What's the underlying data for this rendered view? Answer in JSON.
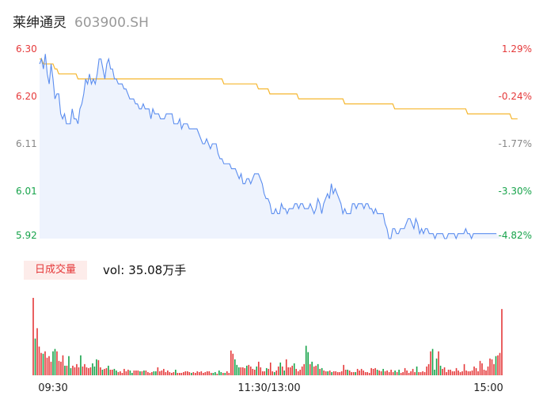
{
  "header": {
    "stock_name": "莱绅通灵",
    "stock_code": "603900.SH"
  },
  "volume_panel": {
    "tab_label": "日成交量",
    "vol_label": "vol:",
    "vol_value": "35.08万手"
  },
  "colors": {
    "price_line": "#5b8def",
    "avg_line": "#f5b62e",
    "up": "#e5393a",
    "down": "#16a34a",
    "neutral": "#888888",
    "area_fill": "#eef3fd"
  },
  "chart_data": [
    {
      "type": "line",
      "title": "",
      "y_left_ticks": [
        "6.30",
        "6.20",
        "6.11",
        "6.01",
        "5.92"
      ],
      "y_right_ticks": [
        "1.29%",
        "-0.24%",
        "-1.77%",
        "-3.30%",
        "-4.82%"
      ],
      "ylim": [
        5.92,
        6.3
      ],
      "x_count": 241,
      "series": [
        {
          "role": "price",
          "values": [
            6.27,
            6.28,
            6.26,
            6.29,
            6.25,
            6.23,
            6.27,
            6.24,
            6.2,
            6.21,
            6.21,
            6.17,
            6.16,
            6.17,
            6.15,
            6.15,
            6.15,
            6.18,
            6.16,
            6.16,
            6.15,
            6.18,
            6.19,
            6.21,
            6.24,
            6.23,
            6.25,
            6.23,
            6.24,
            6.23,
            6.25,
            6.28,
            6.28,
            6.26,
            6.24,
            6.27,
            6.28,
            6.26,
            6.26,
            6.24,
            6.24,
            6.23,
            6.23,
            6.23,
            6.22,
            6.22,
            6.21,
            6.2,
            6.2,
            6.2,
            6.19,
            6.19,
            6.18,
            6.18,
            6.19,
            6.18,
            6.18,
            6.18,
            6.16,
            6.18,
            6.17,
            6.17,
            6.17,
            6.16,
            6.16,
            6.16,
            6.17,
            6.17,
            6.17,
            6.17,
            6.15,
            6.15,
            6.15,
            6.16,
            6.14,
            6.15,
            6.15,
            6.15,
            6.14,
            6.14,
            6.14,
            6.14,
            6.14,
            6.13,
            6.12,
            6.11,
            6.11,
            6.12,
            6.11,
            6.1,
            6.11,
            6.11,
            6.11,
            6.09,
            6.08,
            6.08,
            6.07,
            6.07,
            6.07,
            6.07,
            6.06,
            6.06,
            6.06,
            6.05,
            6.04,
            6.05,
            6.03,
            6.03,
            6.04,
            6.04,
            6.03,
            6.04,
            6.05,
            6.05,
            6.05,
            6.04,
            6.03,
            6.01,
            6.0,
            6.0,
            5.99,
            5.97,
            5.97,
            5.98,
            5.97,
            5.97,
            5.99,
            5.98,
            5.98,
            5.97,
            5.98,
            5.98,
            5.98,
            5.99,
            5.99,
            5.98,
            5.99,
            5.99,
            5.98,
            5.98,
            5.98,
            5.99,
            5.98,
            5.97,
            5.98,
            6.0,
            5.99,
            5.97,
            5.99,
            6.0,
            6.01,
            6.0,
            6.03,
            6.01,
            6.02,
            6.01,
            6.0,
            5.99,
            5.97,
            5.98,
            5.97,
            5.97,
            5.97,
            5.99,
            5.99,
            5.98,
            5.99,
            5.99,
            5.99,
            5.98,
            5.99,
            5.99,
            5.98,
            5.98,
            5.97,
            5.98,
            5.97,
            5.97,
            5.97,
            5.97,
            5.95,
            5.94,
            5.92,
            5.92,
            5.94,
            5.94,
            5.93,
            5.93,
            5.94,
            5.94,
            5.94,
            5.95,
            5.96,
            5.96,
            5.95,
            5.94,
            5.96,
            5.95,
            5.93,
            5.94,
            5.93,
            5.94,
            5.94,
            5.93,
            5.93,
            5.93,
            5.92,
            5.93,
            5.93,
            5.93,
            5.93,
            5.92,
            5.92,
            5.93,
            5.93,
            5.93,
            5.93,
            5.92,
            5.93,
            5.93,
            5.93,
            5.93,
            5.94,
            5.93,
            5.93,
            5.92,
            5.93,
            5.93,
            5.93,
            5.93,
            5.93,
            5.93,
            5.93,
            5.93,
            5.93,
            5.93,
            5.93,
            5.93,
            5.93
          ]
        },
        {
          "role": "average",
          "values": [
            6.28,
            6.28,
            6.27,
            6.27,
            6.27,
            6.27,
            6.27,
            6.27,
            6.26,
            6.26,
            6.25,
            6.25,
            6.25,
            6.25,
            6.25,
            6.25,
            6.25,
            6.25,
            6.25,
            6.25,
            6.24,
            6.24,
            6.24,
            6.24,
            6.24,
            6.24,
            6.24,
            6.24,
            6.24,
            6.24,
            6.24,
            6.24,
            6.24,
            6.24,
            6.24,
            6.24,
            6.24,
            6.24,
            6.24,
            6.24,
            6.24,
            6.24,
            6.24,
            6.24,
            6.24,
            6.24,
            6.24,
            6.24,
            6.24,
            6.24,
            6.24,
            6.24,
            6.24,
            6.24,
            6.24,
            6.24,
            6.24,
            6.24,
            6.24,
            6.24,
            6.24,
            6.24,
            6.24,
            6.24,
            6.24,
            6.24,
            6.24,
            6.24,
            6.24,
            6.24,
            6.24,
            6.24,
            6.24,
            6.24,
            6.24,
            6.24,
            6.24,
            6.24,
            6.24,
            6.24,
            6.24,
            6.24,
            6.24,
            6.24,
            6.24,
            6.24,
            6.24,
            6.24,
            6.24,
            6.24,
            6.24,
            6.24,
            6.24,
            6.24,
            6.24,
            6.24,
            6.23,
            6.23,
            6.23,
            6.23,
            6.23,
            6.23,
            6.23,
            6.23,
            6.23,
            6.23,
            6.23,
            6.23,
            6.23,
            6.23,
            6.23,
            6.23,
            6.23,
            6.23,
            6.22,
            6.22,
            6.22,
            6.22,
            6.22,
            6.22,
            6.21,
            6.21,
            6.21,
            6.21,
            6.21,
            6.21,
            6.21,
            6.21,
            6.21,
            6.21,
            6.21,
            6.21,
            6.21,
            6.21,
            6.21,
            6.2,
            6.2,
            6.2,
            6.2,
            6.2,
            6.2,
            6.2,
            6.2,
            6.2,
            6.2,
            6.2,
            6.2,
            6.2,
            6.2,
            6.2,
            6.2,
            6.2,
            6.2,
            6.2,
            6.2,
            6.2,
            6.2,
            6.2,
            6.2,
            6.19,
            6.19,
            6.19,
            6.19,
            6.19,
            6.19,
            6.19,
            6.19,
            6.19,
            6.19,
            6.19,
            6.19,
            6.19,
            6.19,
            6.19,
            6.19,
            6.19,
            6.19,
            6.19,
            6.19,
            6.19,
            6.19,
            6.19,
            6.19,
            6.19,
            6.19,
            6.18,
            6.18,
            6.18,
            6.18,
            6.18,
            6.18,
            6.18,
            6.18,
            6.18,
            6.18,
            6.18,
            6.18,
            6.18,
            6.18,
            6.18,
            6.18,
            6.18,
            6.18,
            6.18,
            6.18,
            6.18,
            6.18,
            6.18,
            6.18,
            6.18,
            6.18,
            6.18,
            6.18,
            6.18,
            6.18,
            6.18,
            6.18,
            6.18,
            6.18,
            6.18,
            6.18,
            6.18,
            6.18,
            6.17,
            6.17,
            6.17,
            6.17,
            6.17,
            6.17,
            6.17,
            6.17,
            6.17,
            6.17,
            6.17,
            6.17,
            6.17,
            6.17,
            6.17,
            6.17,
            6.17,
            6.17,
            6.17,
            6.17,
            6.17,
            6.17,
            6.17,
            6.16,
            6.16,
            6.16,
            6.16
          ]
        }
      ]
    },
    {
      "type": "bar",
      "title": "",
      "x_tick_labels": [
        "09:30",
        "11:30/13:00",
        "15:00"
      ],
      "values": [
        97,
        46,
        59,
        36,
        28,
        27,
        30,
        22,
        24,
        17,
        30,
        33,
        30,
        18,
        17,
        25,
        12,
        12,
        24,
        9,
        12,
        10,
        14,
        10,
        25,
        11,
        14,
        10,
        9,
        10,
        15,
        11,
        20,
        19,
        10,
        7,
        8,
        9,
        12,
        7,
        7,
        8,
        6,
        4,
        5,
        3,
        8,
        5,
        7,
        6,
        3,
        6,
        6,
        6,
        5,
        5,
        6,
        6,
        4,
        3,
        4,
        5,
        5,
        10,
        5,
        6,
        8,
        4,
        6,
        4,
        3,
        4,
        7,
        3,
        3,
        3,
        4,
        5,
        5,
        4,
        3,
        4,
        3,
        5,
        4,
        5,
        3,
        4,
        5,
        5,
        3,
        3,
        4,
        2,
        6,
        4,
        3,
        3,
        5,
        3,
        31,
        27,
        20,
        13,
        10,
        10,
        10,
        9,
        12,
        13,
        11,
        8,
        7,
        11,
        17,
        10,
        5,
        5,
        9,
        8,
        16,
        5,
        4,
        6,
        11,
        16,
        11,
        6,
        20,
        10,
        10,
        12,
        15,
        8,
        5,
        7,
        11,
        14,
        37,
        29,
        14,
        17,
        11,
        12,
        14,
        8,
        9,
        6,
        5,
        5,
        6,
        4,
        5,
        5,
        4,
        4,
        5,
        13,
        7,
        7,
        6,
        4,
        4,
        4,
        8,
        6,
        8,
        6,
        4,
        4,
        3,
        9,
        8,
        9,
        7,
        6,
        5,
        8,
        5,
        6,
        4,
        7,
        4,
        6,
        4,
        7,
        3,
        4,
        9,
        6,
        3,
        5,
        8,
        4,
        11,
        4,
        4,
        5,
        4,
        11,
        14,
        30,
        33,
        7,
        21,
        30,
        12,
        8,
        10,
        4,
        7,
        7,
        5,
        5,
        9,
        6,
        4,
        5,
        14,
        6,
        5,
        5,
        6,
        11,
        9,
        5,
        18,
        15,
        7,
        6,
        11,
        21,
        20,
        14,
        24,
        25,
        28,
        83
      ],
      "colors": [
        "up",
        "down",
        "up",
        "up",
        "up",
        "down",
        "up",
        "up",
        "up",
        "up",
        "down",
        "down",
        "up",
        "up",
        "up",
        "up",
        "down",
        "up",
        "down",
        "down",
        "up",
        "up",
        "up",
        "up",
        "down",
        "up",
        "up",
        "up",
        "up",
        "up",
        "down",
        "down",
        "down",
        "up",
        "up",
        "down",
        "up",
        "up",
        "down",
        "up",
        "up",
        "down",
        "down",
        "up",
        "up",
        "up",
        "up",
        "up",
        "up",
        "down",
        "down",
        "up",
        "up",
        "up",
        "down",
        "up",
        "down",
        "up",
        "up",
        "up",
        "up",
        "down",
        "down",
        "up",
        "up",
        "up",
        "up",
        "up",
        "up",
        "up",
        "up",
        "up",
        "down",
        "up",
        "up",
        "up",
        "up",
        "up",
        "up",
        "up",
        "down",
        "up",
        "up",
        "up",
        "up",
        "up",
        "up",
        "up",
        "up",
        "up",
        "up",
        "down",
        "down",
        "up",
        "down",
        "down",
        "up",
        "down",
        "up",
        "up",
        "up",
        "up",
        "down",
        "down",
        "down",
        "up",
        "up",
        "up",
        "down",
        "up",
        "up",
        "up",
        "up",
        "down",
        "up",
        "up",
        "up",
        "up",
        "down",
        "up",
        "up",
        "up",
        "down",
        "up",
        "up",
        "down",
        "up",
        "down",
        "up",
        "up",
        "up",
        "up",
        "down",
        "up",
        "up",
        "up",
        "up",
        "up",
        "down",
        "down",
        "up",
        "down",
        "up",
        "up",
        "down",
        "up",
        "down",
        "up",
        "up",
        "down",
        "up",
        "down",
        "up",
        "up",
        "up",
        "up",
        "up",
        "up",
        "up",
        "down",
        "up",
        "up",
        "up",
        "down",
        "up",
        "up",
        "up",
        "up",
        "up",
        "up",
        "up",
        "up",
        "up",
        "up",
        "down",
        "up",
        "up",
        "down",
        "up",
        "up",
        "up",
        "up",
        "up",
        "down",
        "up",
        "down",
        "up",
        "up",
        "up",
        "up",
        "up",
        "up",
        "up",
        "up",
        "down",
        "up",
        "up",
        "up",
        "up",
        "up",
        "up",
        "up",
        "down",
        "down",
        "down",
        "up",
        "down",
        "up",
        "up",
        "up",
        "up",
        "up",
        "up",
        "up",
        "up",
        "up",
        "up",
        "up",
        "up",
        "up",
        "up",
        "up",
        "up",
        "up",
        "up",
        "up",
        "up",
        "up",
        "up",
        "up",
        "up",
        "up",
        "up",
        "up",
        "down",
        "up",
        "up",
        "up",
        "neutral"
      ]
    }
  ]
}
